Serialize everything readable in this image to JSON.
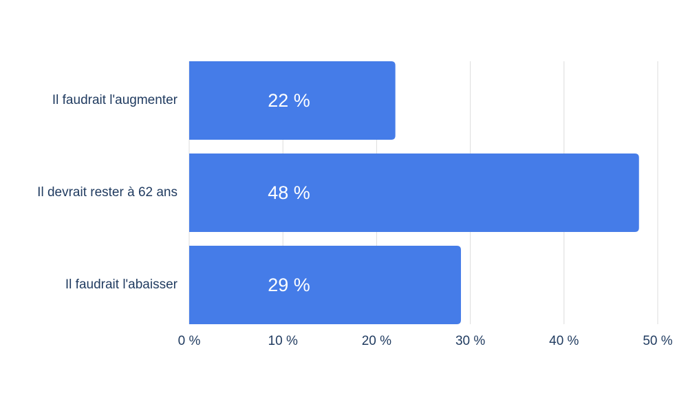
{
  "chart_data": {
    "type": "bar",
    "orientation": "horizontal",
    "categories": [
      "Il faudrait l'augmenter",
      "Il devrait rester à 62 ans",
      "Il faudrait l'abaisser"
    ],
    "values": [
      22,
      48,
      29
    ],
    "value_labels": [
      "22 %",
      "48 %",
      "29 %"
    ],
    "color": "#457ce8",
    "xlim": [
      0,
      50
    ],
    "xticks": [
      {
        "value": 0,
        "label": "0 %"
      },
      {
        "value": 10,
        "label": "10 %"
      },
      {
        "value": 20,
        "label": "20 %"
      },
      {
        "value": 30,
        "label": "30 %"
      },
      {
        "value": 40,
        "label": "40 %"
      },
      {
        "value": 50,
        "label": "50 %"
      }
    ],
    "grid": true
  }
}
